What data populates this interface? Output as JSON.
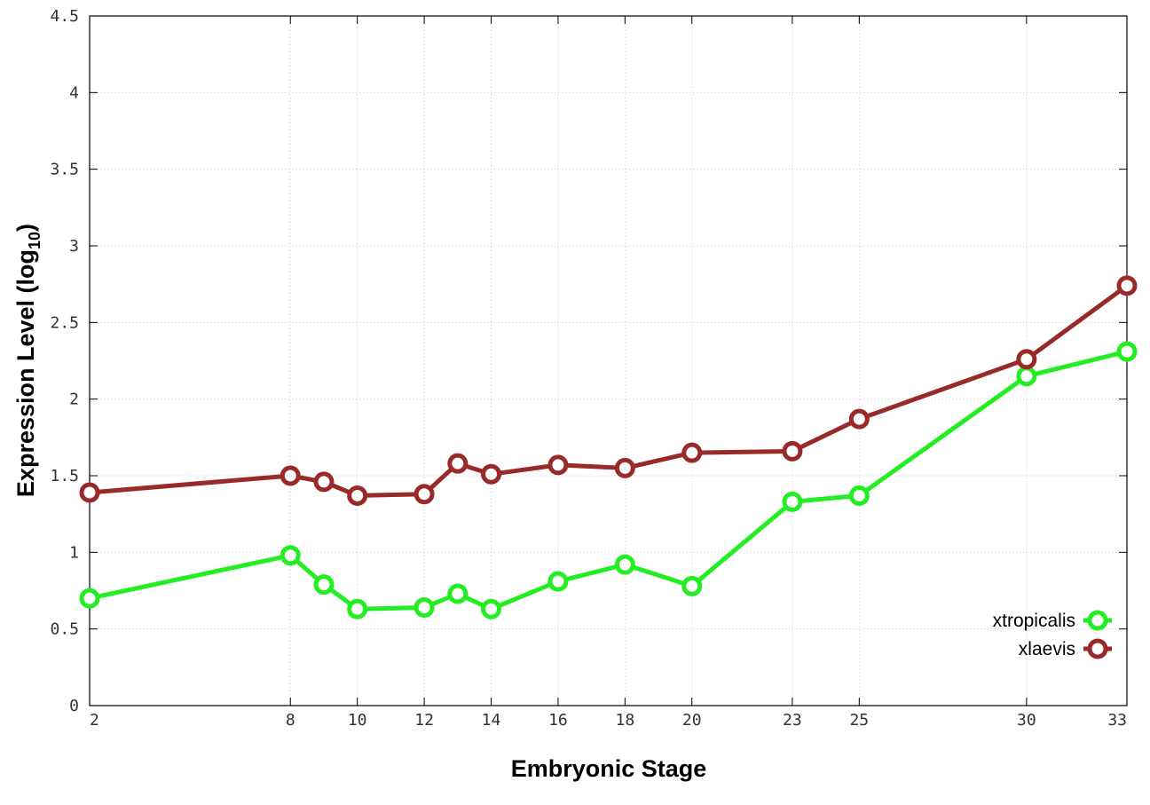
{
  "chart_data": {
    "type": "line",
    "xlabel": "Embryonic Stage",
    "ylabel": {
      "main": "Expression Level (log",
      "sub": "10",
      "close": ")"
    },
    "x": [
      2,
      8,
      9,
      10,
      12,
      13,
      14,
      16,
      18,
      20,
      23,
      25,
      30,
      33
    ],
    "x_ticks": [
      2,
      8,
      10,
      12,
      14,
      16,
      18,
      20,
      23,
      25,
      30,
      33
    ],
    "y_ticks": [
      "0",
      "0.5",
      "1",
      "1.5",
      "2",
      "2.5",
      "3",
      "3.5",
      "4",
      "4.5"
    ],
    "xlim": [
      2,
      33
    ],
    "ylim": [
      0,
      4.5
    ],
    "grid": true,
    "legend_position": "bottom-right",
    "series": [
      {
        "name": "xtropicalis",
        "color": "#22ee22",
        "values": [
          0.7,
          0.98,
          0.79,
          0.63,
          0.64,
          0.73,
          0.63,
          0.81,
          0.92,
          0.78,
          1.33,
          1.37,
          2.15,
          2.31
        ]
      },
      {
        "name": "xlaevis",
        "color": "#982a2a",
        "values": [
          1.39,
          1.5,
          1.46,
          1.37,
          1.38,
          1.58,
          1.51,
          1.57,
          1.55,
          1.65,
          1.66,
          1.87,
          2.26,
          2.74
        ]
      }
    ]
  }
}
